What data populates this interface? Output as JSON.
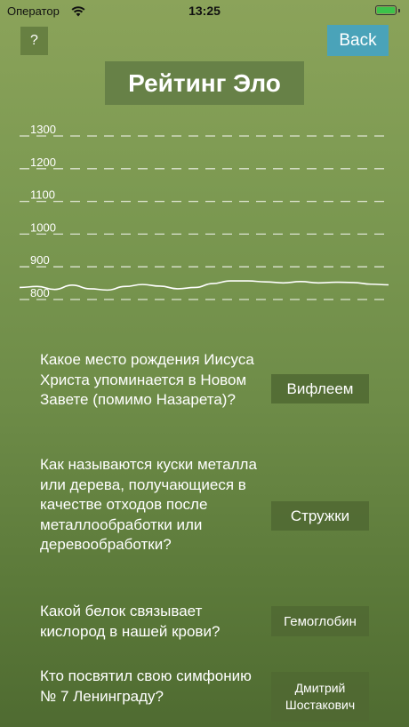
{
  "status_bar": {
    "carrier": "Оператор",
    "time": "13:25",
    "battery_level": 1.0,
    "battery_color": "#3cc24a"
  },
  "toolbar": {
    "help_label": "?",
    "back_label": "Back",
    "back_color": "#4aa3b9"
  },
  "title": "Рейтинг Эло",
  "chart_data": {
    "type": "line",
    "title": "",
    "xlabel": "",
    "ylabel": "",
    "y_ticks": [
      "1300",
      "1200",
      "1100",
      "1000",
      "900",
      "800"
    ],
    "ylim": [
      795,
      1335
    ],
    "grid": "dashed horizontal",
    "series": [
      {
        "values": [
          826,
          829,
          820,
          833,
          822,
          818,
          829,
          835,
          830,
          822,
          826,
          838,
          846,
          846,
          843,
          840,
          844,
          840,
          842,
          841,
          836,
          834
        ]
      }
    ]
  },
  "questions": [
    {
      "text": "Какое место рождения Иисуса Христа упоминается в Новом Завете (помимо Назарета)?",
      "answer": "Вифлеем"
    },
    {
      "text": "Как называются куски металла или дерева, получающиеся в качестве отходов после металлообработки или деревообработки?",
      "answer": "Стружки"
    },
    {
      "text": "Какой белок связывает кислород в нашей крови?",
      "answer": "Гемоглобин"
    },
    {
      "text": "Кто посвятил свою симфонию № 7 Ленинграду?",
      "answer": "Дмитрий Шостакович"
    }
  ]
}
